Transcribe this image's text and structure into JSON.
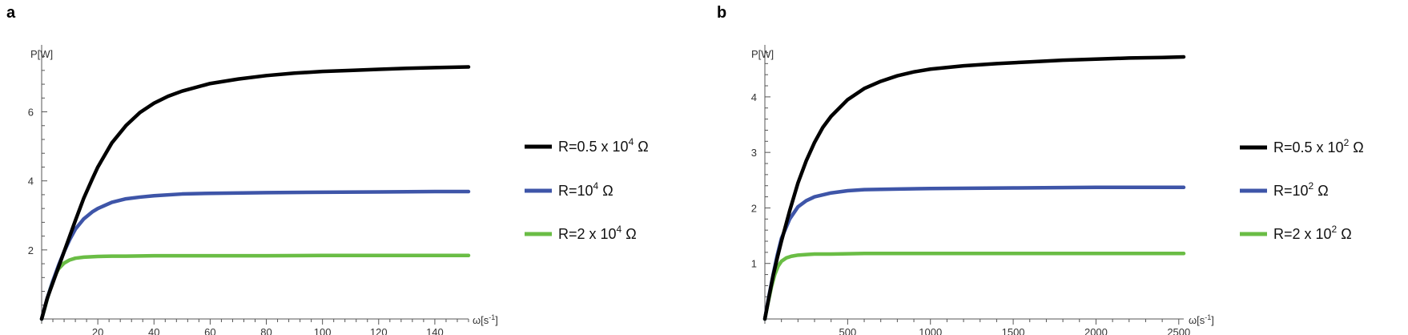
{
  "chart_data": [
    {
      "panel": "a",
      "type": "line",
      "ylabel": "P[W]",
      "xlabel_main": "ω[s",
      "xlabel_sup": "-1",
      "xlabel_close": "]",
      "xlim": [
        0,
        152
      ],
      "ylim": [
        0,
        7.8
      ],
      "xticks": [
        20,
        40,
        60,
        80,
        100,
        120,
        140
      ],
      "yticks": [
        2,
        4,
        6
      ],
      "legend_position": "right",
      "series": [
        {
          "name_main": "R=0.5 x 10",
          "name_sup": "4",
          "name_tail": " Ω",
          "color": "#000000",
          "x": [
            0,
            2,
            4,
            6,
            8,
            10,
            12,
            15,
            18,
            20,
            25,
            30,
            35,
            40,
            45,
            50,
            60,
            70,
            80,
            90,
            100,
            110,
            120,
            130,
            140,
            152
          ],
          "y": [
            0,
            0.6,
            1.05,
            1.5,
            1.95,
            2.4,
            2.85,
            3.5,
            4.05,
            4.4,
            5.1,
            5.6,
            5.98,
            6.25,
            6.45,
            6.6,
            6.82,
            6.95,
            7.05,
            7.12,
            7.17,
            7.2,
            7.23,
            7.26,
            7.28,
            7.3
          ]
        },
        {
          "name_main": "R=10",
          "name_sup": "4",
          "name_tail": " Ω",
          "color": "#3e55a8",
          "x": [
            0,
            2,
            4,
            6,
            8,
            10,
            12,
            15,
            18,
            20,
            25,
            30,
            35,
            40,
            50,
            60,
            80,
            100,
            120,
            140,
            152
          ],
          "y": [
            0,
            0.6,
            1.1,
            1.55,
            1.95,
            2.3,
            2.6,
            2.9,
            3.1,
            3.2,
            3.38,
            3.48,
            3.53,
            3.57,
            3.62,
            3.64,
            3.66,
            3.67,
            3.68,
            3.69,
            3.69
          ]
        },
        {
          "name_main": "R=2 x 10",
          "name_sup": "4",
          "name_tail": " Ω",
          "color": "#6abd45",
          "x": [
            0,
            1,
            2,
            3,
            4,
            5,
            6,
            8,
            10,
            12,
            15,
            20,
            25,
            30,
            40,
            60,
            80,
            100,
            120,
            140,
            152
          ],
          "y": [
            0,
            0.28,
            0.58,
            0.86,
            1.1,
            1.3,
            1.45,
            1.62,
            1.71,
            1.76,
            1.79,
            1.81,
            1.82,
            1.82,
            1.83,
            1.83,
            1.83,
            1.84,
            1.84,
            1.84,
            1.84
          ]
        }
      ]
    },
    {
      "panel": "b",
      "type": "line",
      "ylabel": "P[W]",
      "xlabel_main": "ω[s",
      "xlabel_sup": "-1",
      "xlabel_close": "]",
      "xlim": [
        0,
        2530
      ],
      "ylim": [
        0,
        4.85
      ],
      "xticks": [
        500,
        1000,
        1500,
        2000,
        2500
      ],
      "yticks": [
        1,
        2,
        3,
        4
      ],
      "legend_position": "right",
      "series": [
        {
          "name_main": "R=0.5 x 10",
          "name_sup": "2",
          "name_tail": " Ω",
          "color": "#000000",
          "x": [
            0,
            25,
            50,
            75,
            100,
            150,
            200,
            250,
            300,
            350,
            400,
            500,
            600,
            700,
            800,
            900,
            1000,
            1200,
            1400,
            1600,
            1800,
            2000,
            2200,
            2400,
            2530
          ],
          "y": [
            0,
            0.4,
            0.78,
            1.1,
            1.4,
            1.95,
            2.45,
            2.85,
            3.18,
            3.45,
            3.65,
            3.95,
            4.15,
            4.28,
            4.38,
            4.45,
            4.5,
            4.56,
            4.6,
            4.63,
            4.66,
            4.68,
            4.7,
            4.71,
            4.72
          ]
        },
        {
          "name_main": "R=10",
          "name_sup": "2",
          "name_tail": " Ω",
          "color": "#3e55a8",
          "x": [
            0,
            25,
            50,
            75,
            100,
            150,
            200,
            250,
            300,
            400,
            500,
            600,
            800,
            1000,
            1500,
            2000,
            2530
          ],
          "y": [
            0,
            0.42,
            0.8,
            1.15,
            1.45,
            1.8,
            2.02,
            2.13,
            2.2,
            2.27,
            2.31,
            2.33,
            2.34,
            2.35,
            2.36,
            2.37,
            2.37
          ]
        },
        {
          "name_main": "R=2 x 10",
          "name_sup": "2",
          "name_tail": " Ω",
          "color": "#6abd45",
          "x": [
            0,
            20,
            40,
            60,
            80,
            100,
            130,
            160,
            200,
            250,
            300,
            400,
            600,
            1000,
            1500,
            2000,
            2530
          ],
          "y": [
            0,
            0.3,
            0.58,
            0.8,
            0.95,
            1.04,
            1.1,
            1.13,
            1.15,
            1.16,
            1.17,
            1.17,
            1.18,
            1.18,
            1.18,
            1.18,
            1.18
          ]
        }
      ]
    }
  ]
}
